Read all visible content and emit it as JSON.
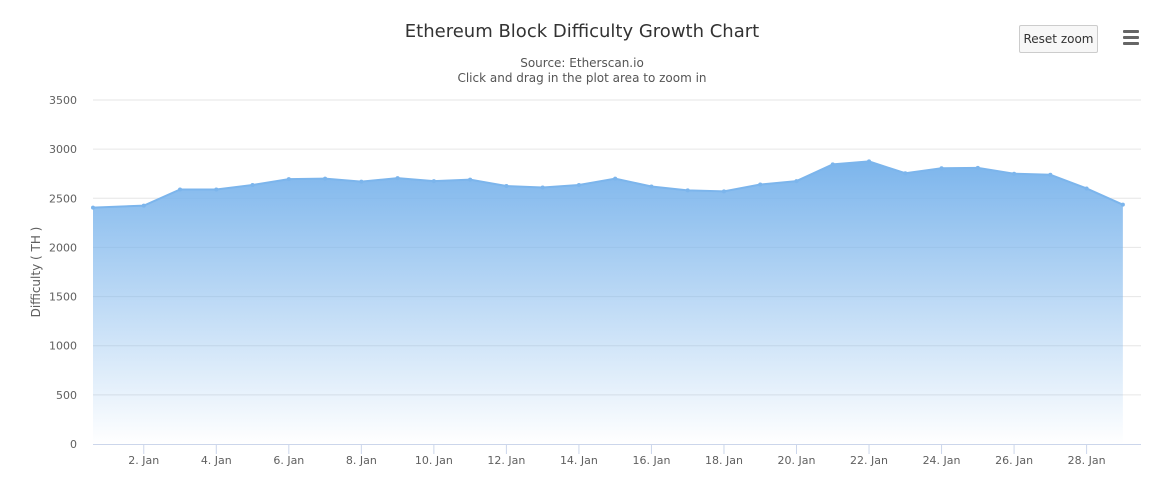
{
  "header": {
    "title": "Ethereum Block Difficulty Growth Chart",
    "source": "Source: Etherscan.io",
    "instruction": "Click and drag in the plot area to zoom in"
  },
  "toolbar": {
    "reset_zoom_label": "Reset zoom",
    "menu_icon": "hamburger-menu-icon"
  },
  "colors": {
    "series": "#7cb5ec",
    "grid": "#e6e6e6",
    "axis": "#ccd6eb"
  },
  "chart_data": {
    "type": "area",
    "title": "Ethereum Block Difficulty Growth Chart",
    "subtitle": "Source: Etherscan.io",
    "xlabel": "",
    "ylabel": "Difficulty ( TH )",
    "ylim": [
      0,
      3500
    ],
    "yticks": [
      0,
      500,
      1000,
      1500,
      2000,
      2500,
      3000,
      3500
    ],
    "xlim": [
      0.6,
      29.5
    ],
    "xticks": [
      {
        "day": 2,
        "label": "2. Jan"
      },
      {
        "day": 4,
        "label": "4. Jan"
      },
      {
        "day": 6,
        "label": "6. Jan"
      },
      {
        "day": 8,
        "label": "8. Jan"
      },
      {
        "day": 10,
        "label": "10. Jan"
      },
      {
        "day": 12,
        "label": "12. Jan"
      },
      {
        "day": 14,
        "label": "14. Jan"
      },
      {
        "day": 16,
        "label": "16. Jan"
      },
      {
        "day": 18,
        "label": "18. Jan"
      },
      {
        "day": 20,
        "label": "20. Jan"
      },
      {
        "day": 22,
        "label": "22. Jan"
      },
      {
        "day": 24,
        "label": "24. Jan"
      },
      {
        "day": 26,
        "label": "26. Jan"
      },
      {
        "day": 28,
        "label": "28. Jan"
      }
    ],
    "grid": true,
    "legend": "none",
    "series": [
      {
        "name": "Difficulty",
        "x": [
          0.6,
          2,
          3,
          4,
          5,
          6,
          7,
          8,
          9,
          10,
          11,
          12,
          13,
          14,
          15,
          16,
          17,
          18,
          19,
          20,
          21,
          22,
          23,
          24,
          25,
          26,
          27,
          28,
          29
        ],
        "values": [
          2405,
          2425,
          2590,
          2590,
          2635,
          2695,
          2700,
          2670,
          2705,
          2675,
          2690,
          2625,
          2610,
          2635,
          2700,
          2620,
          2580,
          2570,
          2640,
          2675,
          2845,
          2875,
          2755,
          2805,
          2810,
          2750,
          2740,
          2600,
          2435
        ]
      }
    ]
  }
}
